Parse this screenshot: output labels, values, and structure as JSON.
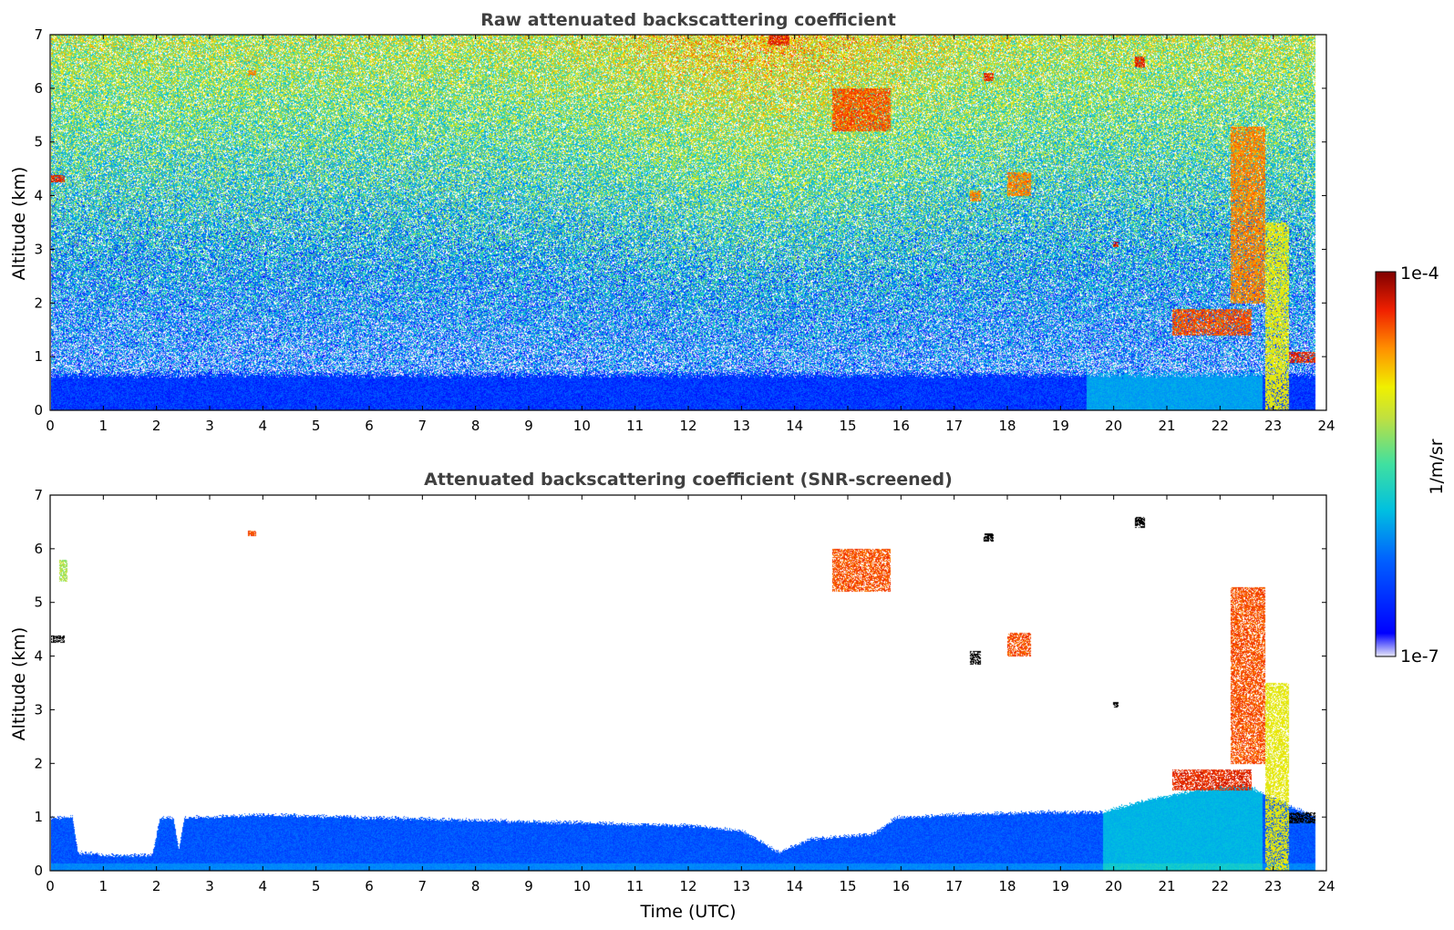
{
  "chart_data": [
    {
      "type": "heatmap",
      "title": "Raw attenuated backscattering coefficient",
      "xlabel": "",
      "ylabel": "Altitude (km)",
      "xlim": [
        0,
        24
      ],
      "ylim": [
        0,
        7
      ],
      "xticks": [
        "0",
        "1",
        "2",
        "3",
        "4",
        "5",
        "6",
        "7",
        "8",
        "9",
        "10",
        "11",
        "12",
        "13",
        "14",
        "15",
        "16",
        "17",
        "18",
        "19",
        "20",
        "21",
        "22",
        "23",
        "24"
      ],
      "yticks": [
        "0",
        "1",
        "2",
        "3",
        "4",
        "5",
        "6",
        "7"
      ],
      "boundary_layer_top_km": 0.6,
      "background_noise_level": "high, increasing with altitude",
      "cloud_features": [
        {
          "t0": 0.0,
          "t1": 0.25,
          "z0": 4.25,
          "z1": 4.4,
          "intensity": 0.95
        },
        {
          "t0": 3.7,
          "t1": 3.85,
          "z0": 6.25,
          "z1": 6.35,
          "intensity": 0.85
        },
        {
          "t0": 13.5,
          "t1": 13.9,
          "z0": 6.8,
          "z1": 7.0,
          "intensity": 0.95
        },
        {
          "t0": 14.7,
          "t1": 15.8,
          "z0": 5.2,
          "z1": 6.0,
          "intensity": 0.9
        },
        {
          "t0": 17.3,
          "t1": 17.5,
          "z0": 3.9,
          "z1": 4.1,
          "intensity": 0.85
        },
        {
          "t0": 17.55,
          "t1": 17.75,
          "z0": 6.15,
          "z1": 6.3,
          "intensity": 0.95
        },
        {
          "t0": 18.0,
          "t1": 18.45,
          "z0": 4.0,
          "z1": 4.45,
          "intensity": 0.85
        },
        {
          "t0": 20.0,
          "t1": 20.1,
          "z0": 3.05,
          "z1": 3.15,
          "intensity": 0.95
        },
        {
          "t0": 20.4,
          "t1": 20.6,
          "z0": 6.4,
          "z1": 6.6,
          "intensity": 0.95
        },
        {
          "t0": 21.1,
          "t1": 22.6,
          "z0": 1.4,
          "z1": 1.9,
          "intensity": 0.9
        },
        {
          "t0": 22.2,
          "t1": 22.85,
          "z0": 2.0,
          "z1": 5.3,
          "intensity": 0.85
        },
        {
          "t0": 22.85,
          "t1": 23.3,
          "z0": 0.0,
          "z1": 3.5,
          "intensity": 0.7
        },
        {
          "t0": 23.3,
          "t1": 23.8,
          "z0": 0.9,
          "z1": 1.1,
          "intensity": 0.95
        }
      ]
    },
    {
      "type": "heatmap",
      "title": "Attenuated backscattering coefficient (SNR-screened)",
      "xlabel": "Time (UTC)",
      "ylabel": "Altitude (km)",
      "xlim": [
        0,
        24
      ],
      "ylim": [
        0,
        7
      ],
      "xticks": [
        "0",
        "1",
        "2",
        "3",
        "4",
        "5",
        "6",
        "7",
        "8",
        "9",
        "10",
        "11",
        "12",
        "13",
        "14",
        "15",
        "16",
        "17",
        "18",
        "19",
        "20",
        "21",
        "22",
        "23",
        "24"
      ],
      "yticks": [
        "0",
        "1",
        "2",
        "3",
        "4",
        "5",
        "6",
        "7"
      ],
      "boundary_layer_top_km": [
        [
          0.0,
          1.0
        ],
        [
          0.4,
          1.0
        ],
        [
          0.5,
          0.35
        ],
        [
          1.0,
          0.3
        ],
        [
          1.9,
          0.3
        ],
        [
          2.05,
          1.0
        ],
        [
          2.3,
          1.0
        ],
        [
          2.4,
          0.4
        ],
        [
          2.5,
          1.0
        ],
        [
          4.0,
          1.05
        ],
        [
          6.0,
          1.0
        ],
        [
          8.0,
          0.95
        ],
        [
          10.0,
          0.9
        ],
        [
          12.0,
          0.85
        ],
        [
          13.0,
          0.75
        ],
        [
          13.7,
          0.35
        ],
        [
          14.3,
          0.6
        ],
        [
          15.5,
          0.7
        ],
        [
          15.9,
          1.0
        ],
        [
          17.0,
          1.05
        ],
        [
          18.5,
          1.1
        ],
        [
          19.8,
          1.1
        ],
        [
          20.5,
          1.3
        ],
        [
          21.5,
          1.5
        ],
        [
          22.5,
          1.6
        ],
        [
          23.8,
          1.0
        ]
      ],
      "cloud_features": [
        {
          "t0": 0.0,
          "t1": 0.25,
          "z0": 4.25,
          "z1": 4.4,
          "intensity": 1.0
        },
        {
          "t0": 0.15,
          "t1": 0.3,
          "z0": 5.4,
          "z1": 5.8,
          "intensity": 0.6
        },
        {
          "t0": 3.7,
          "t1": 3.85,
          "z0": 6.25,
          "z1": 6.35,
          "intensity": 0.9
        },
        {
          "t0": 14.7,
          "t1": 15.8,
          "z0": 5.2,
          "z1": 6.0,
          "intensity": 0.9
        },
        {
          "t0": 17.3,
          "t1": 17.5,
          "z0": 3.85,
          "z1": 4.1,
          "intensity": 1.0
        },
        {
          "t0": 17.55,
          "t1": 17.75,
          "z0": 6.15,
          "z1": 6.3,
          "intensity": 1.0
        },
        {
          "t0": 18.0,
          "t1": 18.45,
          "z0": 4.0,
          "z1": 4.45,
          "intensity": 0.9
        },
        {
          "t0": 20.0,
          "t1": 20.1,
          "z0": 3.05,
          "z1": 3.15,
          "intensity": 1.0
        },
        {
          "t0": 20.4,
          "t1": 20.6,
          "z0": 6.4,
          "z1": 6.6,
          "intensity": 1.0
        },
        {
          "t0": 21.1,
          "t1": 22.6,
          "z0": 1.5,
          "z1": 1.9,
          "intensity": 0.95
        },
        {
          "t0": 22.2,
          "t1": 22.85,
          "z0": 2.0,
          "z1": 5.3,
          "intensity": 0.9
        },
        {
          "t0": 22.85,
          "t1": 23.3,
          "z0": 0.0,
          "z1": 3.5,
          "intensity": 0.7
        },
        {
          "t0": 23.3,
          "t1": 23.8,
          "z0": 0.9,
          "z1": 1.1,
          "intensity": 1.0
        }
      ]
    }
  ],
  "colorbar": {
    "label": "1/m/sr",
    "max_label": "1e-4",
    "min_label": "1e-7",
    "scale": "log",
    "colormap": [
      "#e8e8f8",
      "#0000ff",
      "#0080ff",
      "#00c0e0",
      "#40e0a0",
      "#c0e040",
      "#f0f000",
      "#ff9000",
      "#f02000",
      "#800000"
    ]
  }
}
